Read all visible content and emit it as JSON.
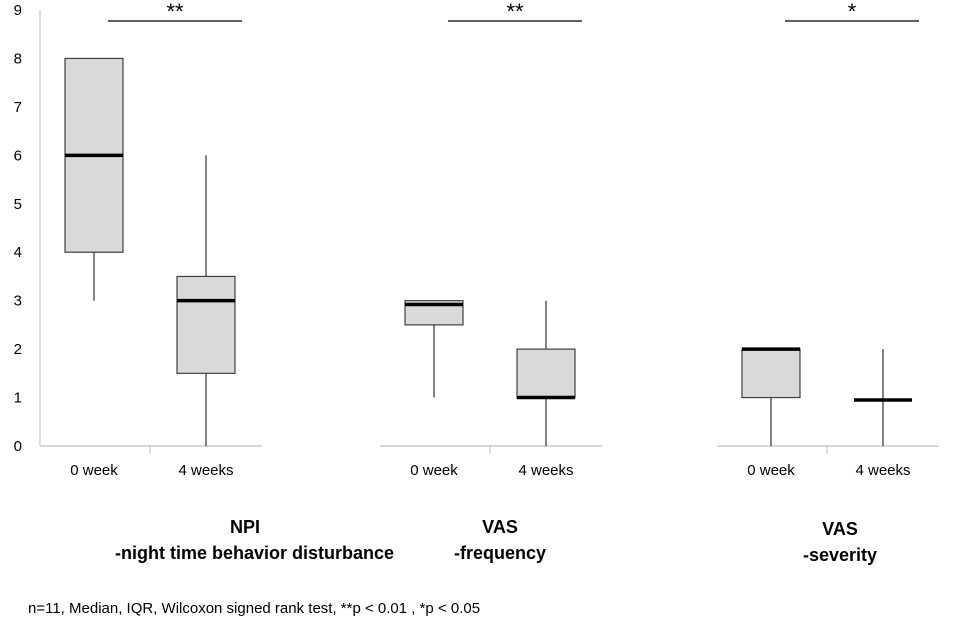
{
  "chart_data": {
    "type": "box",
    "ylim": [
      0,
      9
    ],
    "yticks": [
      "0",
      "1",
      "2",
      "3",
      "4",
      "5",
      "6",
      "7",
      "8",
      "9"
    ],
    "colors": {
      "box_fill": "#d9d9d9",
      "box_stroke": "#404040",
      "median": "#000000",
      "axis": "#bfbfbf"
    },
    "groups": [
      {
        "label_line1": "NPI",
        "label_line2": "-night time behavior disturbance",
        "significance": "**",
        "boxes": [
          {
            "category": "0 week",
            "min": 3,
            "q1": 4,
            "median": 6,
            "q3": 8,
            "max": 8
          },
          {
            "category": "4 weeks",
            "min": 0,
            "q1": 1.5,
            "median": 3,
            "q3": 3.5,
            "max": 6
          }
        ]
      },
      {
        "label_line1": "VAS",
        "label_line2": "-frequency",
        "significance": "**",
        "boxes": [
          {
            "category": "0 week",
            "min": 1,
            "q1": 2.5,
            "median": 2.92,
            "q3": 3,
            "max": 3
          },
          {
            "category": "4 weeks",
            "min": 0,
            "q1": 1,
            "median": 1,
            "q3": 2,
            "max": 3
          }
        ]
      },
      {
        "label_line1": "VAS",
        "label_line2": "-severity",
        "significance": "*",
        "boxes": [
          {
            "category": "0 week",
            "min": 0,
            "q1": 1,
            "median": 2,
            "q3": 2,
            "max": 2
          },
          {
            "category": "4 weeks",
            "min": 0,
            "q1": 0.95,
            "median": 0.95,
            "q3": 0.95,
            "max": 2
          }
        ]
      }
    ],
    "footnote": "n=11, Median, IQR, Wilcoxon signed rank test, **p < 0.01 , *p < 0.05"
  }
}
